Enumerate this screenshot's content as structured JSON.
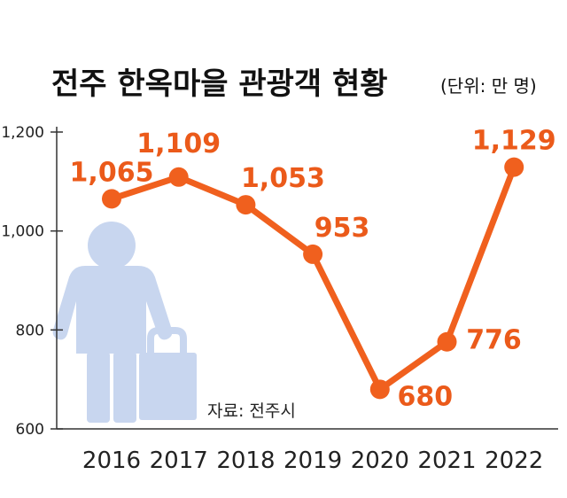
{
  "title": "전주 한옥마을 관광객 현황",
  "unit": "(단위: 만 명)",
  "source": "자료: 전주시",
  "colors": {
    "line": "#F0601E",
    "label": "#EB5A1A",
    "axis": "#333333",
    "grid": "#8a8a8a",
    "icon": "#C8D6EF"
  },
  "illustration": {
    "name": "traveler-with-suitcase-icon"
  },
  "chart_data": {
    "type": "line",
    "title": "전주 한옥마을 관광객 현황",
    "unit": "(단위: 만 명)",
    "x": [
      "2016",
      "2017",
      "2018",
      "2019",
      "2020",
      "2021",
      "2022"
    ],
    "series": [
      {
        "values": [
          1065,
          1109,
          1053,
          953,
          680,
          776,
          1129
        ],
        "labels": [
          "1,065",
          "1,109",
          "1,053",
          "953",
          "680",
          "776",
          "1,129"
        ]
      }
    ],
    "yticks": [
      600,
      800,
      1000,
      1200
    ],
    "ytick_labels": [
      "600",
      "800",
      "1,000",
      "1,200"
    ],
    "ylim": [
      600,
      1200
    ],
    "grid": false,
    "legend": "none",
    "source": "자료: 전주시"
  }
}
